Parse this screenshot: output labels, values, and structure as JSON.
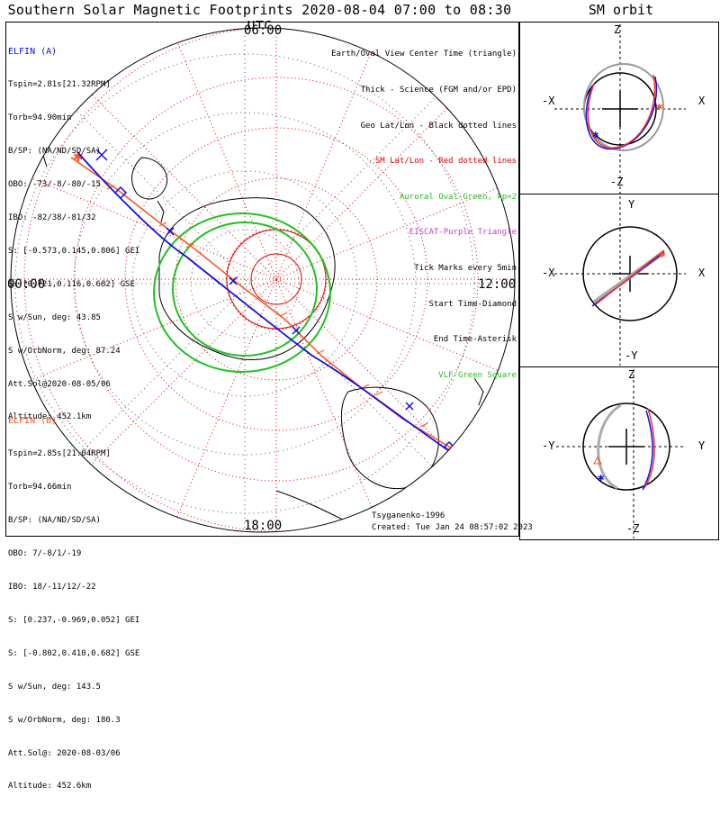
{
  "header": {
    "title": "Southern Solar Magnetic Footprints 2020-08-04 07:00 to 08:30 UTC",
    "orbit_title": "SM orbit"
  },
  "clock_labels": {
    "top": "06:00",
    "bottom": "18:00",
    "left": "00:00",
    "right": "12:00"
  },
  "probe_a": {
    "name": "ELFIN (A)",
    "lines": [
      "Tspin=2.81s[21.32RPM]",
      "Torb=94.90min",
      "B/SP: (NA/ND/SD/SA)",
      "OBO: -73/-8/-80/-15",
      "IBO: -82/38/-81/32",
      "S: [-0.573,0.145,0.806] GEI",
      "S: [0.721,0.116,0.682] GSE",
      "S w/Sun, deg: 43.85",
      "S w/OrbNorm, deg: 87.24",
      "Att.Sol@2020-08-05/06",
      "Altitude: 452.1km"
    ],
    "color": "#1010e0"
  },
  "probe_b": {
    "name": "ELFIN (B)",
    "lines": [
      "Tspin=2.85s[21.04RPM]",
      "Torb=94.66min",
      "B/SP: (NA/ND/SD/SA)",
      "OBO: 7/-8/1/-19",
      "IBO: 18/-11/12/-22",
      "S: [0.237,-0.969,0.052] GEI",
      "S: [-0.802,0.410,0.682] GSE",
      "S w/Sun, deg: 143.5",
      "S w/OrbNorm, deg: 180.3",
      "Att.Sol@: 2020-08-03/06",
      "Altitude: 452.6km"
    ],
    "color": "#ff5020"
  },
  "legend": [
    {
      "text": "Earth/Oval View Center Time (triangle)",
      "color": "#000000"
    },
    {
      "text": "Thick - Science (FGM and/or EPD)",
      "color": "#000000"
    },
    {
      "text": "Geo Lat/Lon - Black dotted lines",
      "color": "#000000"
    },
    {
      "text": "SM Lat/Lon - Red dotted lines",
      "color": "#e00000"
    },
    {
      "text": "Auroral Oval-Green, kp=2",
      "color": "#22c022"
    },
    {
      "text": "EISCAT-Purple Triangle",
      "color": "#c040c0"
    },
    {
      "text": "Tick Marks every 5min",
      "color": "#000000"
    },
    {
      "text": "Start Time-Diamond",
      "color": "#000000"
    },
    {
      "text": "End Time-Asterisk",
      "color": "#000000"
    },
    {
      "text": "VLF-Green Square",
      "color": "#22c022"
    }
  ],
  "credits": {
    "author": "Tsyganenko-1996",
    "created": "Created: Tue Jan 24 08:57:02 2023"
  },
  "orbit_panels": [
    {
      "top": "Z",
      "bottom": "-Z",
      "left": "-X",
      "right": "X"
    },
    {
      "top": "Y",
      "bottom": "-Y",
      "left": "-X",
      "right": "X"
    },
    {
      "top": "Z",
      "bottom": "-Z",
      "left": "-Y",
      "right": "Y"
    }
  ],
  "colors": {
    "oval": "#22c022",
    "sm_grid": "#e00000",
    "geo_grid": "#000000"
  }
}
